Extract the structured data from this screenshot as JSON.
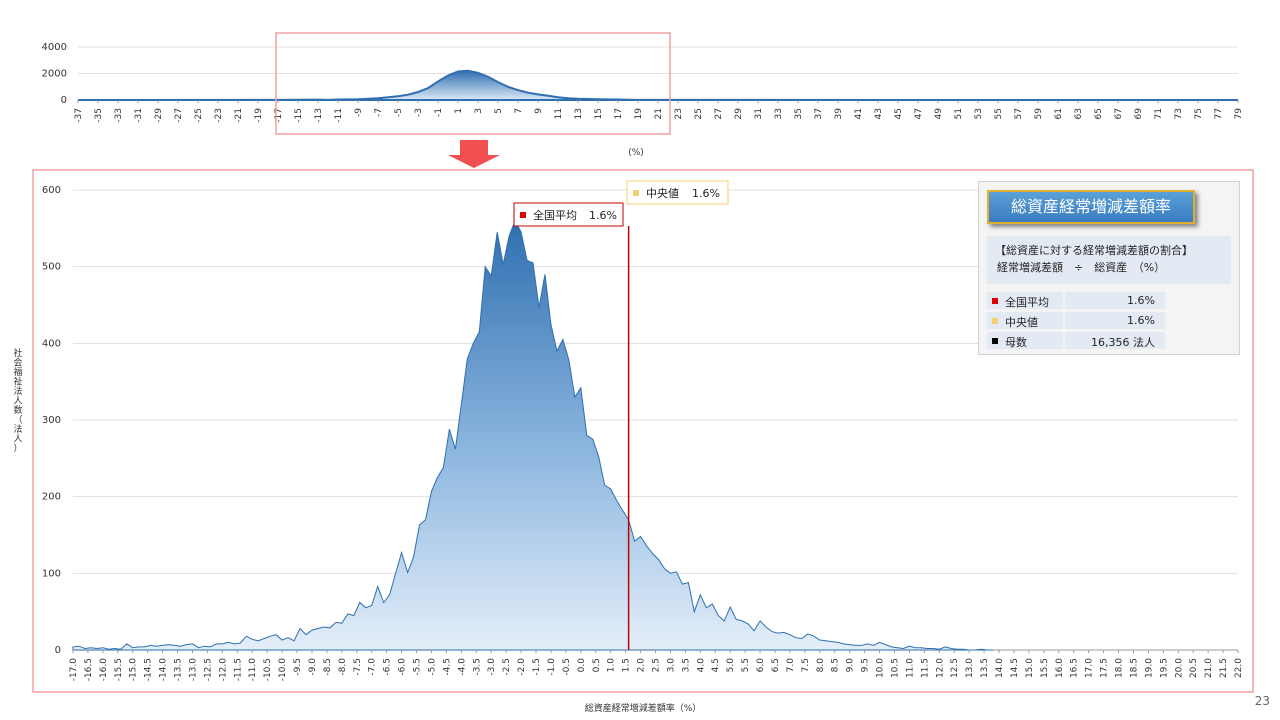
{
  "page_number": "23",
  "info": {
    "title": "総資産経常増減差額率",
    "formula_line1": "【総資産に対する経常増減差額の割合】",
    "formula_line2": "経常増減差額　÷　総資産　（%）",
    "rows": [
      {
        "label": "全国平均",
        "value": "1.6%",
        "color": "#e00000"
      },
      {
        "label": "中央値",
        "value": "1.6%",
        "color": "#f5d070"
      },
      {
        "label": "母数",
        "value": "16,356 法人",
        "color": "#000000"
      }
    ]
  },
  "colors": {
    "frame": "#f0a0a0",
    "area_top": "#2f6fb0",
    "area_bottom": "#e4eef9",
    "mean_line": "#c00000",
    "arrow": "#f25050"
  },
  "chart_data": [
    {
      "type": "area",
      "title": "",
      "xlabel": "(%)",
      "ylabel": "",
      "ylim": [
        0,
        4000
      ],
      "yticks": [
        0,
        2000,
        4000
      ],
      "x_range": [
        -37,
        79
      ],
      "xticks": [
        "-37",
        "-35",
        "-33",
        "-31",
        "-29",
        "-27",
        "-25",
        "-23",
        "-21",
        "-19",
        "-17",
        "-15",
        "-13",
        "-11",
        "-9",
        "-7",
        "-5",
        "-3",
        "-1",
        "1",
        "3",
        "5",
        "7",
        "9",
        "11",
        "13",
        "15",
        "17",
        "19",
        "21",
        "23",
        "25",
        "27",
        "29",
        "31",
        "33",
        "35",
        "37",
        "39",
        "41",
        "43",
        "45",
        "47",
        "49",
        "51",
        "53",
        "55",
        "57",
        "59",
        "61",
        "63",
        "65",
        "67",
        "69",
        "71",
        "73",
        "75",
        "77",
        "79"
      ],
      "x": [
        -37,
        -17,
        -13,
        -12,
        -11,
        -9,
        -7,
        -6,
        -5,
        -4,
        -3,
        -2,
        -1,
        0,
        1,
        2,
        3,
        4,
        5,
        6,
        7,
        8,
        9,
        10,
        11,
        12,
        13,
        15,
        17,
        18,
        19,
        21,
        79
      ],
      "y": [
        0,
        5,
        30,
        5,
        40,
        60,
        130,
        200,
        290,
        400,
        600,
        900,
        1400,
        1850,
        2150,
        2200,
        2050,
        1750,
        1350,
        1000,
        750,
        550,
        420,
        320,
        200,
        130,
        90,
        60,
        40,
        20,
        10,
        5,
        0
      ],
      "highlight_range": [
        -17,
        21
      ]
    },
    {
      "type": "area",
      "title": "",
      "xlabel": "総資産経常増減差額率（%）",
      "ylabel": "社会福祉法人数（法人）",
      "ylim": [
        0,
        600
      ],
      "yticks": [
        0,
        100,
        200,
        300,
        400,
        500,
        600
      ],
      "x_range": [
        -17,
        22
      ],
      "xtick_step": 0.5,
      "x_step": 0.2,
      "y": [
        4,
        5,
        2,
        3,
        2,
        3,
        1,
        2,
        1,
        8,
        3,
        4,
        4,
        6,
        5,
        6,
        7,
        6,
        5,
        7,
        8,
        3,
        5,
        4,
        8,
        8,
        10,
        8,
        9,
        18,
        14,
        12,
        15,
        18,
        20,
        13,
        16,
        12,
        28,
        20,
        26,
        28,
        30,
        29,
        36,
        35,
        47,
        45,
        62,
        55,
        58,
        83,
        62,
        72,
        100,
        127,
        101,
        121,
        163,
        170,
        207,
        225,
        238,
        288,
        262,
        320,
        380,
        400,
        415,
        500,
        488,
        545,
        503,
        540,
        560,
        545,
        508,
        505,
        447,
        490,
        425,
        390,
        405,
        378,
        330,
        342,
        280,
        275,
        252,
        215,
        210,
        195,
        182,
        170,
        142,
        148,
        136,
        126,
        118,
        106,
        100,
        102,
        86,
        88,
        50,
        72,
        55,
        60,
        45,
        38,
        56,
        40,
        38,
        34,
        25,
        38,
        30,
        24,
        22,
        23,
        20,
        16,
        15,
        21,
        18,
        13,
        12,
        11,
        10,
        8,
        7,
        6,
        6,
        8,
        6,
        10,
        7,
        4,
        3,
        2,
        5,
        3,
        3,
        2,
        2,
        1,
        4,
        2,
        1,
        1,
        0,
        0,
        1,
        0,
        0
      ],
      "annotations": [
        {
          "label": "全国平均",
          "value": "1.6%"
        },
        {
          "label": "中央値",
          "value": "1.6%"
        }
      ],
      "marker_x": 1.6
    }
  ]
}
